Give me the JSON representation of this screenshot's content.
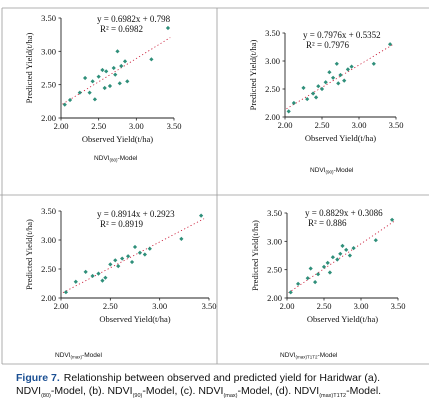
{
  "figure": {
    "caption_label": "Figure 7.",
    "caption_text": "Relationship between observed and predicted yield for Haridwar (a). NDVI",
    "caption_parts": [
      {
        "sub": "(80)",
        "text": "-Model, (b). NDVI"
      },
      {
        "sub": "(90)",
        "text": "-Model, (c). NDVI"
      },
      {
        "sub": "(max)",
        "text": "-Model, (d). NDVI"
      },
      {
        "sub": "(max)T1T2",
        "text": "-Model."
      }
    ]
  },
  "colors": {
    "marker": "#2f8f7a",
    "trend": "#c8102e",
    "frame": "#222222"
  },
  "chart_data": [
    {
      "type": "scatter",
      "xlabel": "Observed Yield(t/ha)",
      "ylabel": "Predicted Yield(t/ha)",
      "xlim": [
        2.0,
        3.5
      ],
      "ylim": [
        2.0,
        3.5
      ],
      "xticks": [
        "2.00",
        "2.50",
        "3.00",
        "3.50"
      ],
      "yticks": [
        "2.00",
        "2.50",
        "3.00",
        "3.50"
      ],
      "equation": "y = 0.6982x + 0.798",
      "r2": "R² = 0.6982",
      "slope": 0.6982,
      "intercept": 0.798,
      "model_name": "NDVI",
      "model_sub": "(80)",
      "model_suffix": "-Model",
      "x": [
        2.05,
        2.12,
        2.25,
        2.32,
        2.38,
        2.42,
        2.45,
        2.5,
        2.55,
        2.58,
        2.6,
        2.65,
        2.7,
        2.72,
        2.75,
        2.78,
        2.8,
        2.85,
        2.88,
        3.2,
        3.42
      ],
      "y": [
        2.2,
        2.27,
        2.38,
        2.6,
        2.38,
        2.55,
        2.28,
        2.62,
        2.72,
        2.45,
        2.7,
        2.48,
        2.75,
        2.65,
        3.0,
        2.52,
        2.78,
        2.85,
        2.55,
        2.88,
        3.35
      ]
    },
    {
      "type": "scatter",
      "xlabel": "Observed Yield(t/ha)",
      "ylabel": "Predicted Yield(t/ha)",
      "xlim": [
        2.0,
        3.5
      ],
      "ylim": [
        2.0,
        3.5
      ],
      "xticks": [
        "2.00",
        "2.50",
        "3.00",
        "3.50"
      ],
      "yticks": [
        "2.00",
        "2.50",
        "3.00",
        "3.50"
      ],
      "equation": "y = 0.7976x + 0.5352",
      "r2": "R² = 0.7976",
      "slope": 0.7976,
      "intercept": 0.5352,
      "model_name": "NDVI",
      "model_sub": "(90)",
      "model_suffix": "-Model",
      "x": [
        2.05,
        2.12,
        2.25,
        2.3,
        2.38,
        2.42,
        2.45,
        2.5,
        2.55,
        2.6,
        2.65,
        2.7,
        2.72,
        2.75,
        2.8,
        2.85,
        2.9,
        3.2,
        3.42
      ],
      "y": [
        2.1,
        2.25,
        2.52,
        2.32,
        2.42,
        2.35,
        2.55,
        2.5,
        2.62,
        2.8,
        2.7,
        2.95,
        2.6,
        2.75,
        2.65,
        2.85,
        2.9,
        2.95,
        3.3
      ]
    },
    {
      "type": "scatter",
      "xlabel": "Observed Yield(t/ha)",
      "ylabel": "Predicted Yield(t/ha)",
      "xlim": [
        2.0,
        3.5
      ],
      "ylim": [
        2.0,
        3.5
      ],
      "xticks": [
        "2.00",
        "2.50",
        "3.00",
        "3.50"
      ],
      "yticks": [
        "2.00",
        "2.50",
        "3.00",
        "3.50"
      ],
      "equation": "y = 0.8914x + 0.2923",
      "r2": "R² = 0.8919",
      "slope": 0.8914,
      "intercept": 0.2923,
      "model_name": "NDVI",
      "model_sub": "(max)",
      "model_suffix": "-Model",
      "x": [
        2.05,
        2.15,
        2.25,
        2.32,
        2.38,
        2.42,
        2.45,
        2.5,
        2.55,
        2.58,
        2.62,
        2.68,
        2.72,
        2.75,
        2.8,
        2.85,
        2.9,
        3.22,
        3.42
      ],
      "y": [
        2.1,
        2.28,
        2.45,
        2.38,
        2.42,
        2.3,
        2.35,
        2.58,
        2.65,
        2.55,
        2.68,
        2.72,
        2.62,
        2.88,
        2.78,
        2.75,
        2.85,
        3.02,
        3.42
      ]
    },
    {
      "type": "scatter",
      "xlabel": "Observed Yield(t/ha)",
      "ylabel": "Predicted Yield(t/ha)",
      "xlim": [
        2.0,
        3.5
      ],
      "ylim": [
        2.0,
        3.5
      ],
      "xticks": [
        "2.00",
        "2.50",
        "3.00",
        "3.50"
      ],
      "yticks": [
        "2.00",
        "2.50",
        "3.00",
        "3.50"
      ],
      "equation": "y = 0.8829x + 0.3086",
      "r2": "R² = 0.886",
      "slope": 0.8829,
      "intercept": 0.3086,
      "model_name": "NDVI",
      "model_sub": "(max)T1T2",
      "model_suffix": "-Model",
      "x": [
        2.05,
        2.15,
        2.28,
        2.32,
        2.38,
        2.42,
        2.5,
        2.55,
        2.58,
        2.62,
        2.68,
        2.72,
        2.75,
        2.8,
        2.85,
        2.9,
        3.2,
        3.42
      ],
      "y": [
        2.1,
        2.25,
        2.35,
        2.52,
        2.28,
        2.42,
        2.55,
        2.62,
        2.45,
        2.72,
        2.68,
        2.78,
        2.92,
        2.85,
        2.75,
        2.88,
        3.02,
        3.38
      ]
    }
  ]
}
